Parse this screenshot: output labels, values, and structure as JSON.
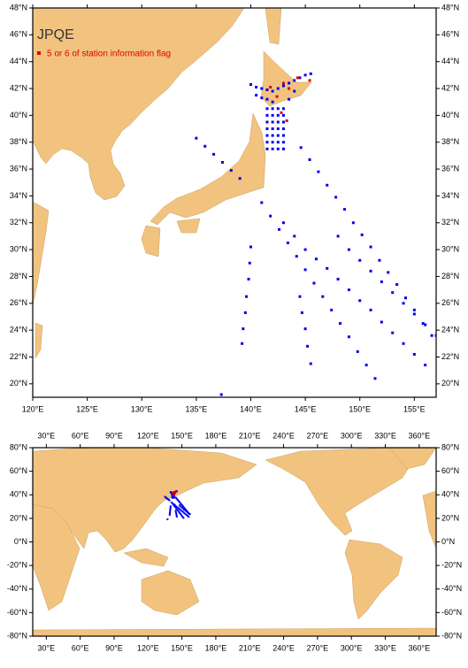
{
  "title": "JPQE",
  "legend": "5 or 6 of station information flag",
  "top_map": {
    "xlim": [
      120,
      157
    ],
    "ylim": [
      19,
      48
    ],
    "xticks": [
      {
        "value": 120,
        "label": "120°E"
      },
      {
        "value": 125,
        "label": "125°E"
      },
      {
        "value": 130,
        "label": "130°E"
      },
      {
        "value": 135,
        "label": "135°E"
      },
      {
        "value": 140,
        "label": "140°E"
      },
      {
        "value": 145,
        "label": "145°E"
      },
      {
        "value": 150,
        "label": "150°E"
      },
      {
        "value": 155,
        "label": "155°E"
      }
    ],
    "yticks": [
      {
        "value": 20,
        "label": "20°N"
      },
      {
        "value": 22,
        "label": "22°N"
      },
      {
        "value": 24,
        "label": "24°N"
      },
      {
        "value": 26,
        "label": "26°N"
      },
      {
        "value": 28,
        "label": "28°N"
      },
      {
        "value": 30,
        "label": "30°N"
      },
      {
        "value": 32,
        "label": "32°N"
      },
      {
        "value": 34,
        "label": "34°N"
      },
      {
        "value": 36,
        "label": "36°N"
      },
      {
        "value": 38,
        "label": "38°N"
      },
      {
        "value": 40,
        "label": "40°N"
      },
      {
        "value": 42,
        "label": "42°N"
      },
      {
        "value": 44,
        "label": "44°N"
      },
      {
        "value": 46,
        "label": "46°N"
      },
      {
        "value": 48,
        "label": "48°N"
      }
    ]
  },
  "bottom_map": {
    "xlim": [
      18,
      375
    ],
    "ylim": [
      -80,
      80
    ],
    "xticks": [
      {
        "value": 30,
        "label": "30°E"
      },
      {
        "value": 60,
        "label": "60°E"
      },
      {
        "value": 90,
        "label": "90°E"
      },
      {
        "value": 120,
        "label": "120°E"
      },
      {
        "value": 150,
        "label": "150°E"
      },
      {
        "value": 180,
        "label": "180°E"
      },
      {
        "value": 210,
        "label": "210°E"
      },
      {
        "value": 240,
        "label": "240°E"
      },
      {
        "value": 270,
        "label": "270°E"
      },
      {
        "value": 300,
        "label": "300°E"
      },
      {
        "value": 330,
        "label": "330°E"
      },
      {
        "value": 360,
        "label": "360°E"
      }
    ],
    "yticks": [
      {
        "value": -80,
        "label": "-80°N"
      },
      {
        "value": -60,
        "label": "-60°N"
      },
      {
        "value": -40,
        "label": "-40°N"
      },
      {
        "value": -20,
        "label": "-20°N"
      },
      {
        "value": 0,
        "label": "0°N"
      },
      {
        "value": 20,
        "label": "20°N"
      },
      {
        "value": 40,
        "label": "40°N"
      },
      {
        "value": 60,
        "label": "60°N"
      },
      {
        "value": 80,
        "label": "80°N"
      }
    ]
  },
  "stations": [
    [
      144.6,
      37.6
    ],
    [
      145.4,
      36.7
    ],
    [
      146.2,
      35.8
    ],
    [
      147,
      34.8
    ],
    [
      147.8,
      33.9
    ],
    [
      148.6,
      33
    ],
    [
      149.4,
      32
    ],
    [
      150.2,
      31.1
    ],
    [
      151,
      30.2
    ],
    [
      151.8,
      29.2
    ],
    [
      152.6,
      28.3
    ],
    [
      153.4,
      27.4
    ],
    [
      154.2,
      26.4
    ],
    [
      155,
      25.5
    ],
    [
      155.8,
      24.5
    ],
    [
      156.6,
      23.6
    ],
    [
      135,
      38.3
    ],
    [
      135.8,
      37.7
    ],
    [
      136.6,
      37.1
    ],
    [
      137.4,
      36.5
    ],
    [
      138.2,
      35.9
    ],
    [
      139,
      35.3
    ],
    [
      141,
      33.5
    ],
    [
      141.8,
      32.5
    ],
    [
      142.6,
      31.5
    ],
    [
      143.4,
      30.5
    ],
    [
      144.2,
      29.5
    ],
    [
      145,
      28.5
    ],
    [
      145.8,
      27.5
    ],
    [
      146.6,
      26.5
    ],
    [
      147.4,
      25.5
    ],
    [
      148.2,
      24.5
    ],
    [
      149,
      23.5
    ],
    [
      149.8,
      22.4
    ],
    [
      150.6,
      21.4
    ],
    [
      151.4,
      20.4
    ],
    [
      143,
      32
    ],
    [
      144,
      31
    ],
    [
      145,
      30
    ],
    [
      146,
      29.3
    ],
    [
      147,
      28.6
    ],
    [
      148,
      27.8
    ],
    [
      149,
      27
    ],
    [
      150,
      26.2
    ],
    [
      151,
      25.5
    ],
    [
      152,
      24.6
    ],
    [
      153,
      23.8
    ],
    [
      154,
      23
    ],
    [
      155,
      22.2
    ],
    [
      156,
      21.4
    ],
    [
      148,
      31
    ],
    [
      149,
      30
    ],
    [
      150,
      29.2
    ],
    [
      151,
      28.4
    ],
    [
      152,
      27.6
    ],
    [
      153,
      26.8
    ],
    [
      154,
      26
    ],
    [
      155,
      25.2
    ],
    [
      156,
      24.4
    ],
    [
      157,
      23.6
    ],
    [
      140,
      30.2
    ],
    [
      139.9,
      29
    ],
    [
      139.8,
      27.8
    ],
    [
      139.6,
      26.5
    ],
    [
      139.5,
      25.3
    ],
    [
      139.3,
      24.1
    ],
    [
      139.2,
      23
    ],
    [
      137.3,
      19.2
    ],
    [
      144.5,
      26.5
    ],
    [
      144.7,
      25.3
    ],
    [
      145,
      24.1
    ],
    [
      145.2,
      22.8
    ],
    [
      145.5,
      21.5
    ],
    [
      141.5,
      37.5
    ],
    [
      141.5,
      38
    ],
    [
      141.5,
      38.5
    ],
    [
      141.5,
      39
    ],
    [
      141.5,
      39.5
    ],
    [
      141.5,
      40
    ],
    [
      141.5,
      40.5
    ],
    [
      142,
      37.5
    ],
    [
      142,
      38
    ],
    [
      142,
      38.5
    ],
    [
      142,
      39
    ],
    [
      142,
      39.5
    ],
    [
      142,
      40
    ],
    [
      142,
      40.5
    ],
    [
      142.5,
      37.5
    ],
    [
      142.5,
      38
    ],
    [
      142.5,
      38.5
    ],
    [
      142.5,
      39
    ],
    [
      142.5,
      39.5
    ],
    [
      142.5,
      40
    ],
    [
      142.5,
      40.5
    ],
    [
      143,
      37.5
    ],
    [
      143,
      38
    ],
    [
      143,
      38.5
    ],
    [
      143,
      39
    ],
    [
      143,
      39.5
    ],
    [
      143,
      40
    ],
    [
      143,
      40.5
    ],
    [
      140,
      42.3
    ],
    [
      140.5,
      42.1
    ],
    [
      141,
      42
    ],
    [
      141.5,
      41.9
    ],
    [
      142,
      41.8
    ],
    [
      142.5,
      42
    ],
    [
      143,
      42.2
    ],
    [
      143.5,
      42.4
    ],
    [
      144,
      42.6
    ],
    [
      144.5,
      42.8
    ],
    [
      145,
      43
    ],
    [
      145.5,
      43.1
    ],
    [
      140.5,
      41.5
    ],
    [
      141,
      41.3
    ],
    [
      141.5,
      41.2
    ],
    [
      142,
      41
    ],
    [
      143.5,
      41.2
    ],
    [
      144,
      41.8
    ]
  ],
  "flagged": [
    [
      141.8,
      42.1
    ],
    [
      143,
      42.4
    ],
    [
      144.3,
      42.8
    ],
    [
      145.4,
      42.6
    ],
    [
      142.4,
      41.4
    ],
    [
      142.8,
      40.2
    ],
    [
      143.3,
      39.6
    ],
    [
      143.5,
      42
    ]
  ]
}
